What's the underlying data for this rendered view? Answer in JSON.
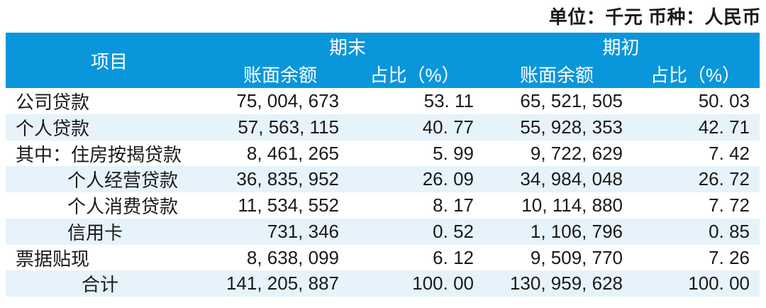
{
  "meta": {
    "unit_currency_label": "单位：千元  币种：人民币"
  },
  "colors": {
    "header_bg": "#0996DB",
    "stripe_bg": "#E6F3FB",
    "header_text": "#FFFFFF",
    "body_text": "#1A1A1A"
  },
  "table": {
    "item_header": "项目",
    "group_end": "期末",
    "group_begin": "期初",
    "sub_end_balance": "账面余额",
    "sub_end_pct": "占比（%）",
    "sub_begin_balance": "账面余额",
    "sub_begin_pct": "占比（%）",
    "rows": [
      {
        "label": "公司贷款",
        "end_balance": "75, 004, 673",
        "end_pct": "53. 11",
        "begin_balance": "65, 521, 505",
        "begin_pct": "50. 03"
      },
      {
        "label": "个人贷款",
        "end_balance": "57, 563, 115",
        "end_pct": "40. 77",
        "begin_balance": "55, 928, 353",
        "begin_pct": "42. 71"
      },
      {
        "label": "其中：住房按揭贷款",
        "end_balance": "8, 461, 265",
        "end_pct": "5. 99",
        "begin_balance": "9, 722, 629",
        "begin_pct": "7. 42"
      },
      {
        "label": "个人经营贷款",
        "end_balance": "36, 835, 952",
        "end_pct": "26. 09",
        "begin_balance": "34, 984, 048",
        "begin_pct": "26. 72"
      },
      {
        "label": "个人消费贷款",
        "end_balance": "11, 534, 552",
        "end_pct": "8. 17",
        "begin_balance": "10, 114, 880",
        "begin_pct": "7. 72"
      },
      {
        "label": "信用卡",
        "end_balance": "731, 346",
        "end_pct": "0. 52",
        "begin_balance": "1, 106, 796",
        "begin_pct": "0. 85"
      },
      {
        "label": "票据贴现",
        "end_balance": "8, 638, 099",
        "end_pct": "6. 12",
        "begin_balance": "9, 509, 770",
        "begin_pct": "7. 26"
      },
      {
        "label": "合计",
        "end_balance": "141, 205, 887",
        "end_pct": "100. 00",
        "begin_balance": "130, 959, 628",
        "begin_pct": "100. 00"
      }
    ]
  }
}
